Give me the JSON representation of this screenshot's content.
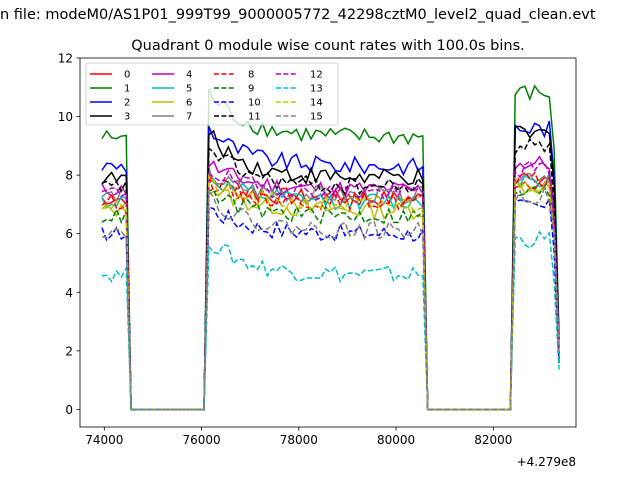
{
  "figure": {
    "suptitle": "n file: modeM0/AS1P01_999T99_9000005772_42298cztM0_level2_quad_clean.evt",
    "title": "Quadrant 0 module wise count rates with 100.0s bins."
  },
  "chart_data": {
    "type": "line",
    "title": "Quadrant 0 module wise count rates with 100.0s bins.",
    "xlabel": "",
    "ylabel": "",
    "x_offset_label": "+4.279e8",
    "xlim": [
      73500,
      83700
    ],
    "ylim": [
      -0.6,
      12
    ],
    "x_ticks": [
      74000,
      76000,
      78000,
      80000,
      82000
    ],
    "x_tick_labels": [
      "74000",
      "76000",
      "78000",
      "80000",
      "82000"
    ],
    "y_ticks": [
      0,
      2,
      4,
      6,
      8,
      10,
      12
    ],
    "y_tick_labels": [
      "0",
      "2",
      "4",
      "6",
      "8",
      "10",
      "12"
    ],
    "grid": false,
    "legend_location": "upper-left",
    "legend_columns": 4,
    "bin_seconds": 100,
    "segments": [
      {
        "x_start": 73950,
        "x_end": 74450,
        "shape": "flat"
      },
      {
        "x_start": 76150,
        "x_end": 80550,
        "shape": "decay"
      },
      {
        "x_start": 82450,
        "x_end": 83350,
        "shape": "hump"
      }
    ],
    "gaps": [
      {
        "x_start": 74550,
        "x_end": 76050
      },
      {
        "x_start": 80650,
        "x_end": 82350
      }
    ],
    "series": [
      {
        "name": "0",
        "color": "#ff0000",
        "dash": "solid",
        "level": 7.2,
        "high": 7.8,
        "end": 2.0
      },
      {
        "name": "1",
        "color": "#008000",
        "dash": "solid",
        "level": 9.3,
        "high": 10.8,
        "end": 2.6
      },
      {
        "name": "2",
        "color": "#0000ff",
        "dash": "solid",
        "level": 8.3,
        "high": 9.6,
        "end": 2.4
      },
      {
        "name": "3",
        "color": "#000000",
        "dash": "solid",
        "level": 7.9,
        "high": 9.4,
        "end": 2.3
      },
      {
        "name": "4",
        "color": "#bf00bf",
        "dash": "solid",
        "level": 7.5,
        "high": 8.4,
        "end": 2.1
      },
      {
        "name": "5",
        "color": "#00bfbf",
        "dash": "solid",
        "level": 7.1,
        "high": 7.9,
        "end": 2.0
      },
      {
        "name": "6",
        "color": "#bfbf00",
        "dash": "solid",
        "level": 6.8,
        "high": 7.6,
        "end": 1.9
      },
      {
        "name": "7",
        "color": "#808080",
        "dash": "solid",
        "level": 7.3,
        "high": 8.0,
        "end": 2.0
      },
      {
        "name": "8",
        "color": "#ff0000",
        "dash": "dashed",
        "level": 7.1,
        "high": 7.8,
        "end": 2.0
      },
      {
        "name": "9",
        "color": "#008000",
        "dash": "dashed",
        "level": 6.6,
        "high": 7.4,
        "end": 1.9
      },
      {
        "name": "10",
        "color": "#0000ff",
        "dash": "dashed",
        "level": 6.0,
        "high": 6.9,
        "end": 1.7
      },
      {
        "name": "11",
        "color": "#000000",
        "dash": "dashed",
        "level": 7.6,
        "high": 9.0,
        "end": 2.2
      },
      {
        "name": "12",
        "color": "#bf00bf",
        "dash": "dashed",
        "level": 7.4,
        "high": 8.2,
        "end": 2.1
      },
      {
        "name": "13",
        "color": "#00bfbf",
        "dash": "dashed",
        "level": 4.6,
        "high": 5.8,
        "end": 1.3
      },
      {
        "name": "14",
        "color": "#bfbf00",
        "dash": "dashed",
        "level": 7.0,
        "high": 7.7,
        "end": 2.0
      },
      {
        "name": "15",
        "color": "#808080",
        "dash": "dashed",
        "level": 6.1,
        "high": 7.3,
        "end": 1.8
      }
    ]
  }
}
